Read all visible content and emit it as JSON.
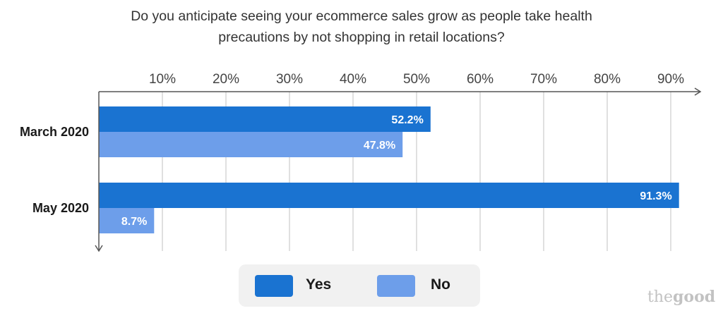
{
  "chart_data": {
    "type": "bar",
    "orientation": "horizontal",
    "title_lines": [
      "Do you anticipate seeing your ecommerce sales grow as people take health",
      "precautions by not shopping in retail locations?"
    ],
    "categories": [
      "March 2020",
      "May 2020"
    ],
    "series": [
      {
        "name": "Yes",
        "values": [
          52.2,
          91.3
        ],
        "labels": [
          "52.2%",
          "91.3%"
        ],
        "color": "#1a73d1"
      },
      {
        "name": "No",
        "values": [
          47.8,
          8.7
        ],
        "labels": [
          "47.8%",
          "8.7%"
        ],
        "color": "#6d9eea"
      }
    ],
    "x_ticks": [
      10,
      20,
      30,
      40,
      50,
      60,
      70,
      80,
      90
    ],
    "x_tick_labels": [
      "10%",
      "20%",
      "30%",
      "40%",
      "50%",
      "60%",
      "70%",
      "80%",
      "90%"
    ],
    "xlim": [
      0,
      95
    ],
    "grid": true,
    "legend_position": "bottom-center",
    "axis_color": "#555555",
    "grid_color": "#d6d6d6"
  },
  "legend": {
    "yes_label": "Yes",
    "no_label": "No"
  },
  "brand": {
    "part1": "the",
    "part2": "good"
  }
}
